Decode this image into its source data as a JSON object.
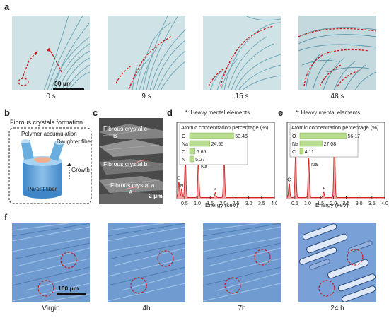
{
  "panel_a": {
    "label": "a",
    "scale": "50 μm",
    "frames": [
      {
        "time": "0 s"
      },
      {
        "time": "9 s"
      },
      {
        "time": "15 s"
      },
      {
        "time": "48 s"
      }
    ]
  },
  "panel_b": {
    "label": "b",
    "title": "Fibrous crystals formation",
    "polymer": "Polymer accumulation",
    "daughter": "Daughter fiber",
    "growth": "Growth",
    "parent": "Parent fiber"
  },
  "panel_c": {
    "label": "c",
    "crystal_c": "Fibrous crystal c",
    "crystal_b": "Fibrous crystal b",
    "crystal_a": "Fibrous crystal a",
    "marker_b": "B",
    "marker_a": "A",
    "scale": "2 μm"
  },
  "panel_d": {
    "label": "d",
    "legend": "*: Heavy mental elements",
    "box_title": "Atomic concentration percentage (%)",
    "xlabel": "Energy (keV)"
  },
  "panel_e": {
    "label": "e",
    "legend": "*: Heavy mental elements",
    "box_title": "Atomic concentration percentage (%)",
    "xlabel": "Energy (keV)"
  },
  "panel_f": {
    "label": "f",
    "scale": "100 μm",
    "frames": [
      {
        "time": "Virgin"
      },
      {
        "time": "4h"
      },
      {
        "time": "7h"
      },
      {
        "time": "24 h"
      }
    ]
  },
  "chart_data": [
    {
      "type": "bar",
      "title": "Atomic concentration percentage (%)",
      "categories": [
        "O",
        "Na",
        "C",
        "N"
      ],
      "values": [
        53.46,
        24.55,
        6.65,
        5.27
      ],
      "xlim": [
        0,
        60
      ]
    },
    {
      "type": "line",
      "xlabel": "Energy (keV)",
      "xticks": [
        "0.5",
        "1.0",
        "1.5",
        "2.0",
        "2.5",
        "3.0",
        "3.5",
        "4.0"
      ],
      "xlim": [
        0.2,
        4.0
      ],
      "peak_labels": [
        "C",
        "N",
        "O",
        "Na"
      ],
      "peaks": [
        {
          "x": 0.28,
          "y": 0.22
        },
        {
          "x": 0.39,
          "y": 0.12
        },
        {
          "x": 0.53,
          "y": 0.55
        },
        {
          "x": 1.04,
          "y": 0.52
        },
        {
          "x": 1.7,
          "y": 0.07
        },
        {
          "x": 2.04,
          "y": 0.55
        }
      ]
    },
    {
      "type": "bar",
      "title": "Atomic concentration percentage (%)",
      "categories": [
        "O",
        "Na",
        "C"
      ],
      "values": [
        56.17,
        27.08,
        4.11
      ],
      "xlim": [
        0,
        60
      ]
    },
    {
      "type": "line",
      "xlabel": "Energy (keV)",
      "xticks": [
        "0.5",
        "1.0",
        "1.5",
        "2.0",
        "2.5",
        "3.0",
        "3.5",
        "4.0"
      ],
      "xlim": [
        0.2,
        4.0
      ],
      "peak_labels": [
        "C",
        "O",
        "Na"
      ],
      "peaks": [
        {
          "x": 0.28,
          "y": 0.2
        },
        {
          "x": 0.53,
          "y": 0.62
        },
        {
          "x": 1.04,
          "y": 0.55
        },
        {
          "x": 1.62,
          "y": 0.08
        },
        {
          "x": 2.04,
          "y": 0.85
        }
      ]
    }
  ]
}
